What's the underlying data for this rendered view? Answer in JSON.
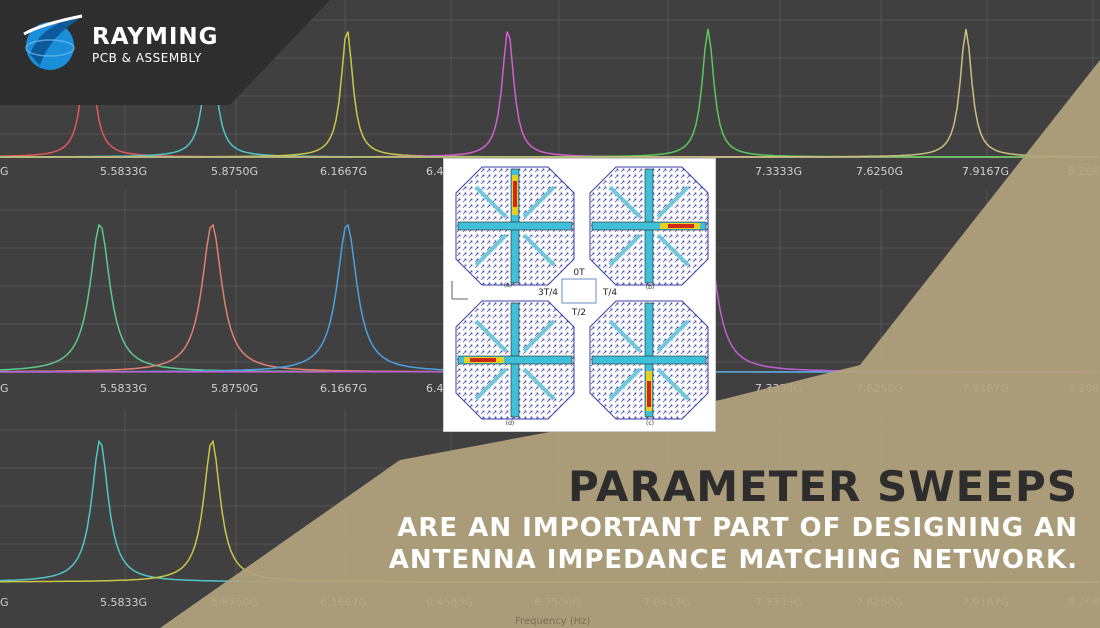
{
  "brand": {
    "name": "RAYMING",
    "tagline": "PCB & ASSEMBLY"
  },
  "headline": {
    "title": "PARAMETER SWEEPS",
    "line1": "ARE AN IMPORTANT PART OF DESIGNING AN",
    "line2": "ANTENNA IMPEDANCE MATCHING NETWORK."
  },
  "background_plot": {
    "tick_labels": [
      "G",
      "5.5833G",
      "5.8750G",
      "6.1667G",
      "6.4583G",
      "6.7500G",
      "7.0417G",
      "7.3333G",
      "7.6250G",
      "7.9167G",
      "8.2083G"
    ],
    "axis_label": "Frequency (Hz)"
  },
  "figure": {
    "center_labels": {
      "top": "0T",
      "left": "3T/4",
      "right": "T/4",
      "bottom": "T/2"
    },
    "panel_labels": [
      "(a)",
      "(b)",
      "(d)",
      "(c)"
    ]
  },
  "colors": {
    "gold": "#b3a27e",
    "background": "#404040",
    "logo_blue": "#1a8ed8"
  }
}
